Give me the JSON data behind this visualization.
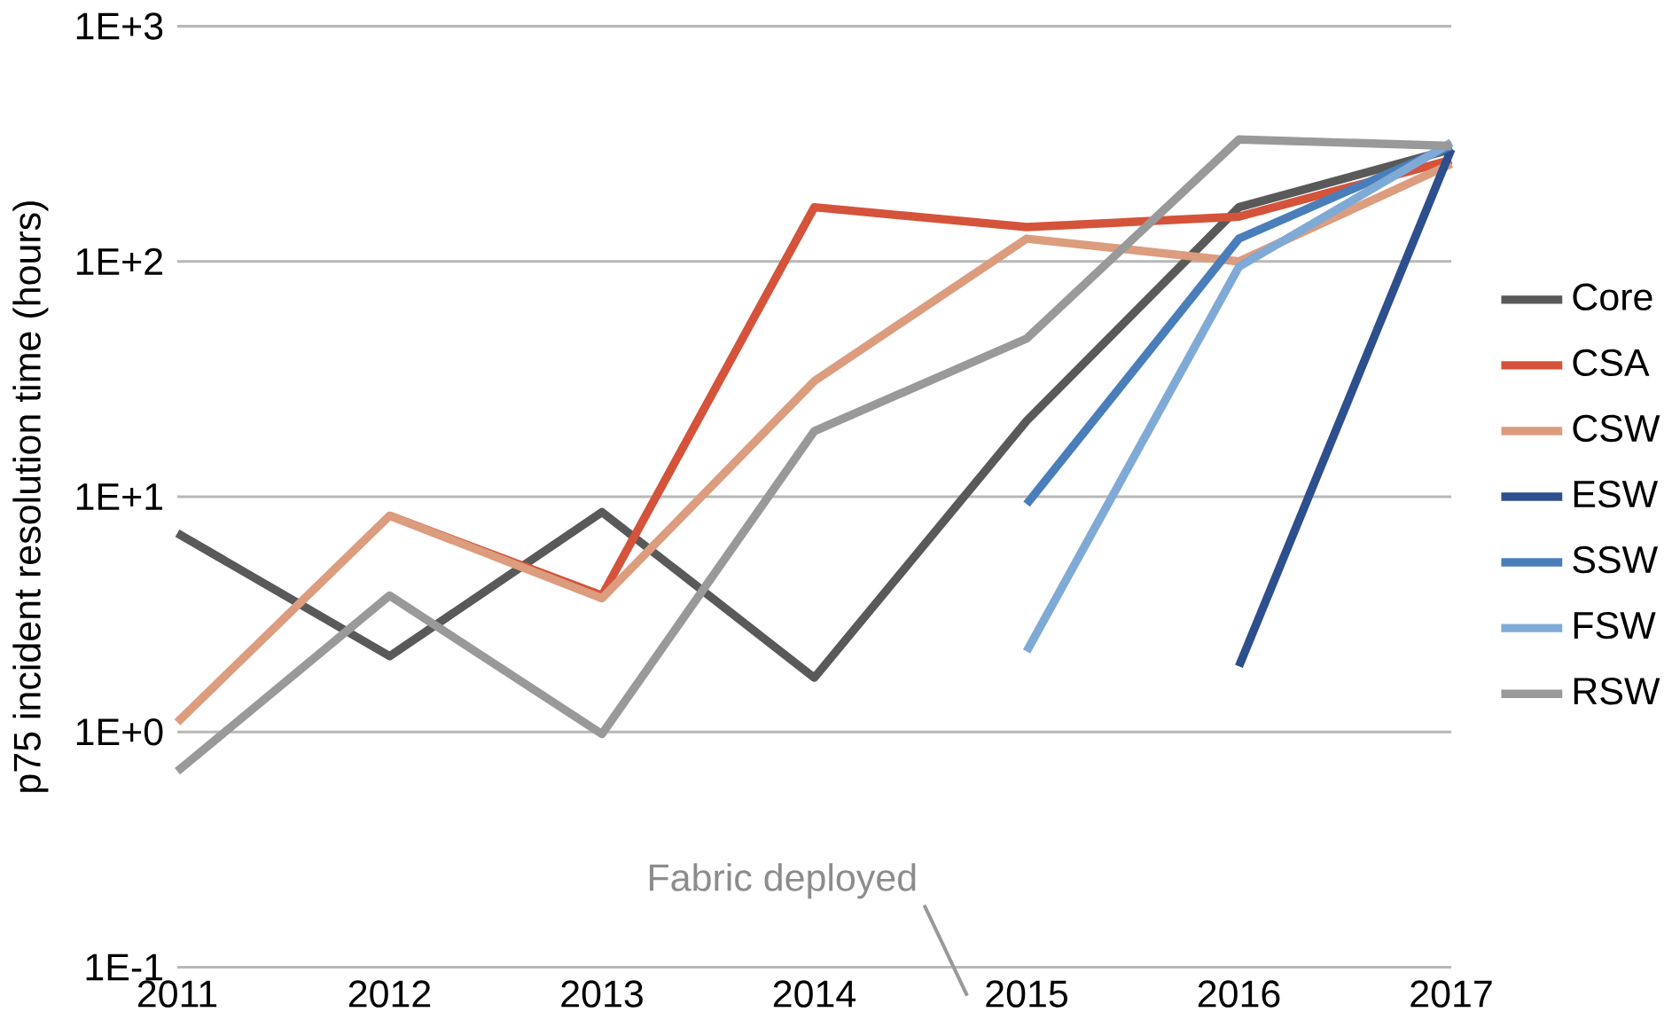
{
  "chart_data": {
    "type": "line",
    "ylabel": "p75 incident resolution time (hours)",
    "x": [
      2011,
      2012,
      2013,
      2014,
      2015,
      2016,
      2017
    ],
    "xlim": [
      2011,
      2017
    ],
    "xticks": [
      2011,
      2012,
      2013,
      2014,
      2015,
      2016,
      2017
    ],
    "ylim": [
      0.1,
      1000
    ],
    "yticks": [
      {
        "value": 0.1,
        "label": "1E-1"
      },
      {
        "value": 1,
        "label": "1E+0"
      },
      {
        "value": 10,
        "label": "1E+1"
      },
      {
        "value": 100,
        "label": "1E+2"
      },
      {
        "value": 1000,
        "label": "1E+3"
      }
    ],
    "log": "y",
    "grid": "y",
    "legend": "right",
    "marker": "none",
    "line_style": "solid",
    "series": [
      {
        "name": "Core",
        "color": "#595959",
        "values": [
          7.0,
          2.1,
          8.6,
          1.7,
          21,
          170,
          300
        ]
      },
      {
        "name": "CSA",
        "color": "#d4533a",
        "values": [
          null,
          8.3,
          3.8,
          170,
          140,
          155,
          270
        ]
      },
      {
        "name": "CSW",
        "color": "#dc9c7e",
        "values": [
          1.1,
          8.3,
          3.7,
          31,
          125,
          100,
          260
        ]
      },
      {
        "name": "ESW",
        "color": "#2d4f8e",
        "values": [
          null,
          null,
          null,
          null,
          null,
          1.9,
          300
        ]
      },
      {
        "name": "SSW",
        "color": "#4a7ebb",
        "values": [
          null,
          null,
          null,
          null,
          9.3,
          125,
          310
        ]
      },
      {
        "name": "FSW",
        "color": "#80aad6",
        "values": [
          null,
          null,
          null,
          null,
          2.2,
          95,
          320
        ]
      },
      {
        "name": "RSW",
        "color": "#999999",
        "values": [
          0.68,
          3.8,
          0.98,
          19,
          47,
          330,
          310
        ]
      }
    ],
    "annotations": [
      "Fabric deployed"
    ]
  }
}
